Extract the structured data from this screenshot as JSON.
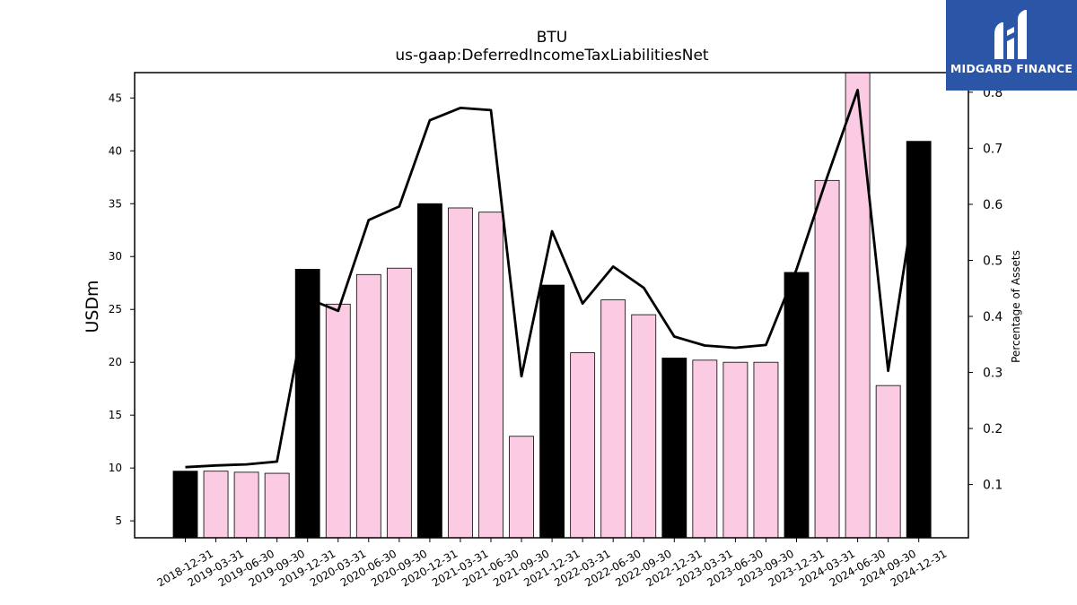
{
  "chart_data": {
    "type": "bar",
    "title": "BTU",
    "subtitle": "us-gaap:DeferredIncomeTaxLiabilitiesNet",
    "ylabel": "USDm",
    "y2label": "Percentage of Assets",
    "categories": [
      "2018-12-31",
      "2019-03-31",
      "2019-06-30",
      "2019-09-30",
      "2019-12-31",
      "2020-03-31",
      "2020-06-30",
      "2020-09-30",
      "2020-12-31",
      "2021-03-31",
      "2021-06-30",
      "2021-09-30",
      "2021-12-31",
      "2022-03-31",
      "2022-06-30",
      "2022-09-30",
      "2022-12-31",
      "2023-03-31",
      "2023-06-30",
      "2023-09-30",
      "2023-12-31",
      "2024-03-31",
      "2024-06-30",
      "2024-09-30",
      "2024-12-31"
    ],
    "series": [
      {
        "type": "bar",
        "values": [
          9.7,
          9.7,
          9.6,
          9.5,
          28.8,
          25.5,
          28.3,
          28.9,
          35.0,
          34.6,
          34.2,
          13.0,
          27.3,
          20.9,
          25.9,
          24.5,
          20.4,
          20.2,
          20.0,
          20.0,
          28.5,
          37.2,
          47.5,
          17.8,
          40.9
        ],
        "year_end_color": "#000000",
        "quarter_color": "#fbcae3"
      },
      {
        "type": "line",
        "axis": "right",
        "color": "#000000",
        "values": [
          0.131,
          0.134,
          0.136,
          0.141,
          0.432,
          0.41,
          0.572,
          0.596,
          0.75,
          0.772,
          0.768,
          0.293,
          0.552,
          0.423,
          0.489,
          0.451,
          0.364,
          0.348,
          0.344,
          0.349,
          0.484,
          0.648,
          0.804,
          0.303,
          0.657
        ]
      }
    ],
    "ylim": [
      3.4,
      47.4
    ],
    "y2lim": [
      0.005,
      0.835
    ],
    "yticks": [
      5,
      10,
      15,
      20,
      25,
      30,
      35,
      40,
      45
    ],
    "y2ticks": [
      0.1,
      0.2,
      0.3,
      0.4,
      0.5,
      0.6,
      0.7,
      0.8
    ],
    "grid": false,
    "legend": "none"
  },
  "logo": {
    "text": "MIDGARD FINANCE",
    "color": "#2b56a8"
  }
}
